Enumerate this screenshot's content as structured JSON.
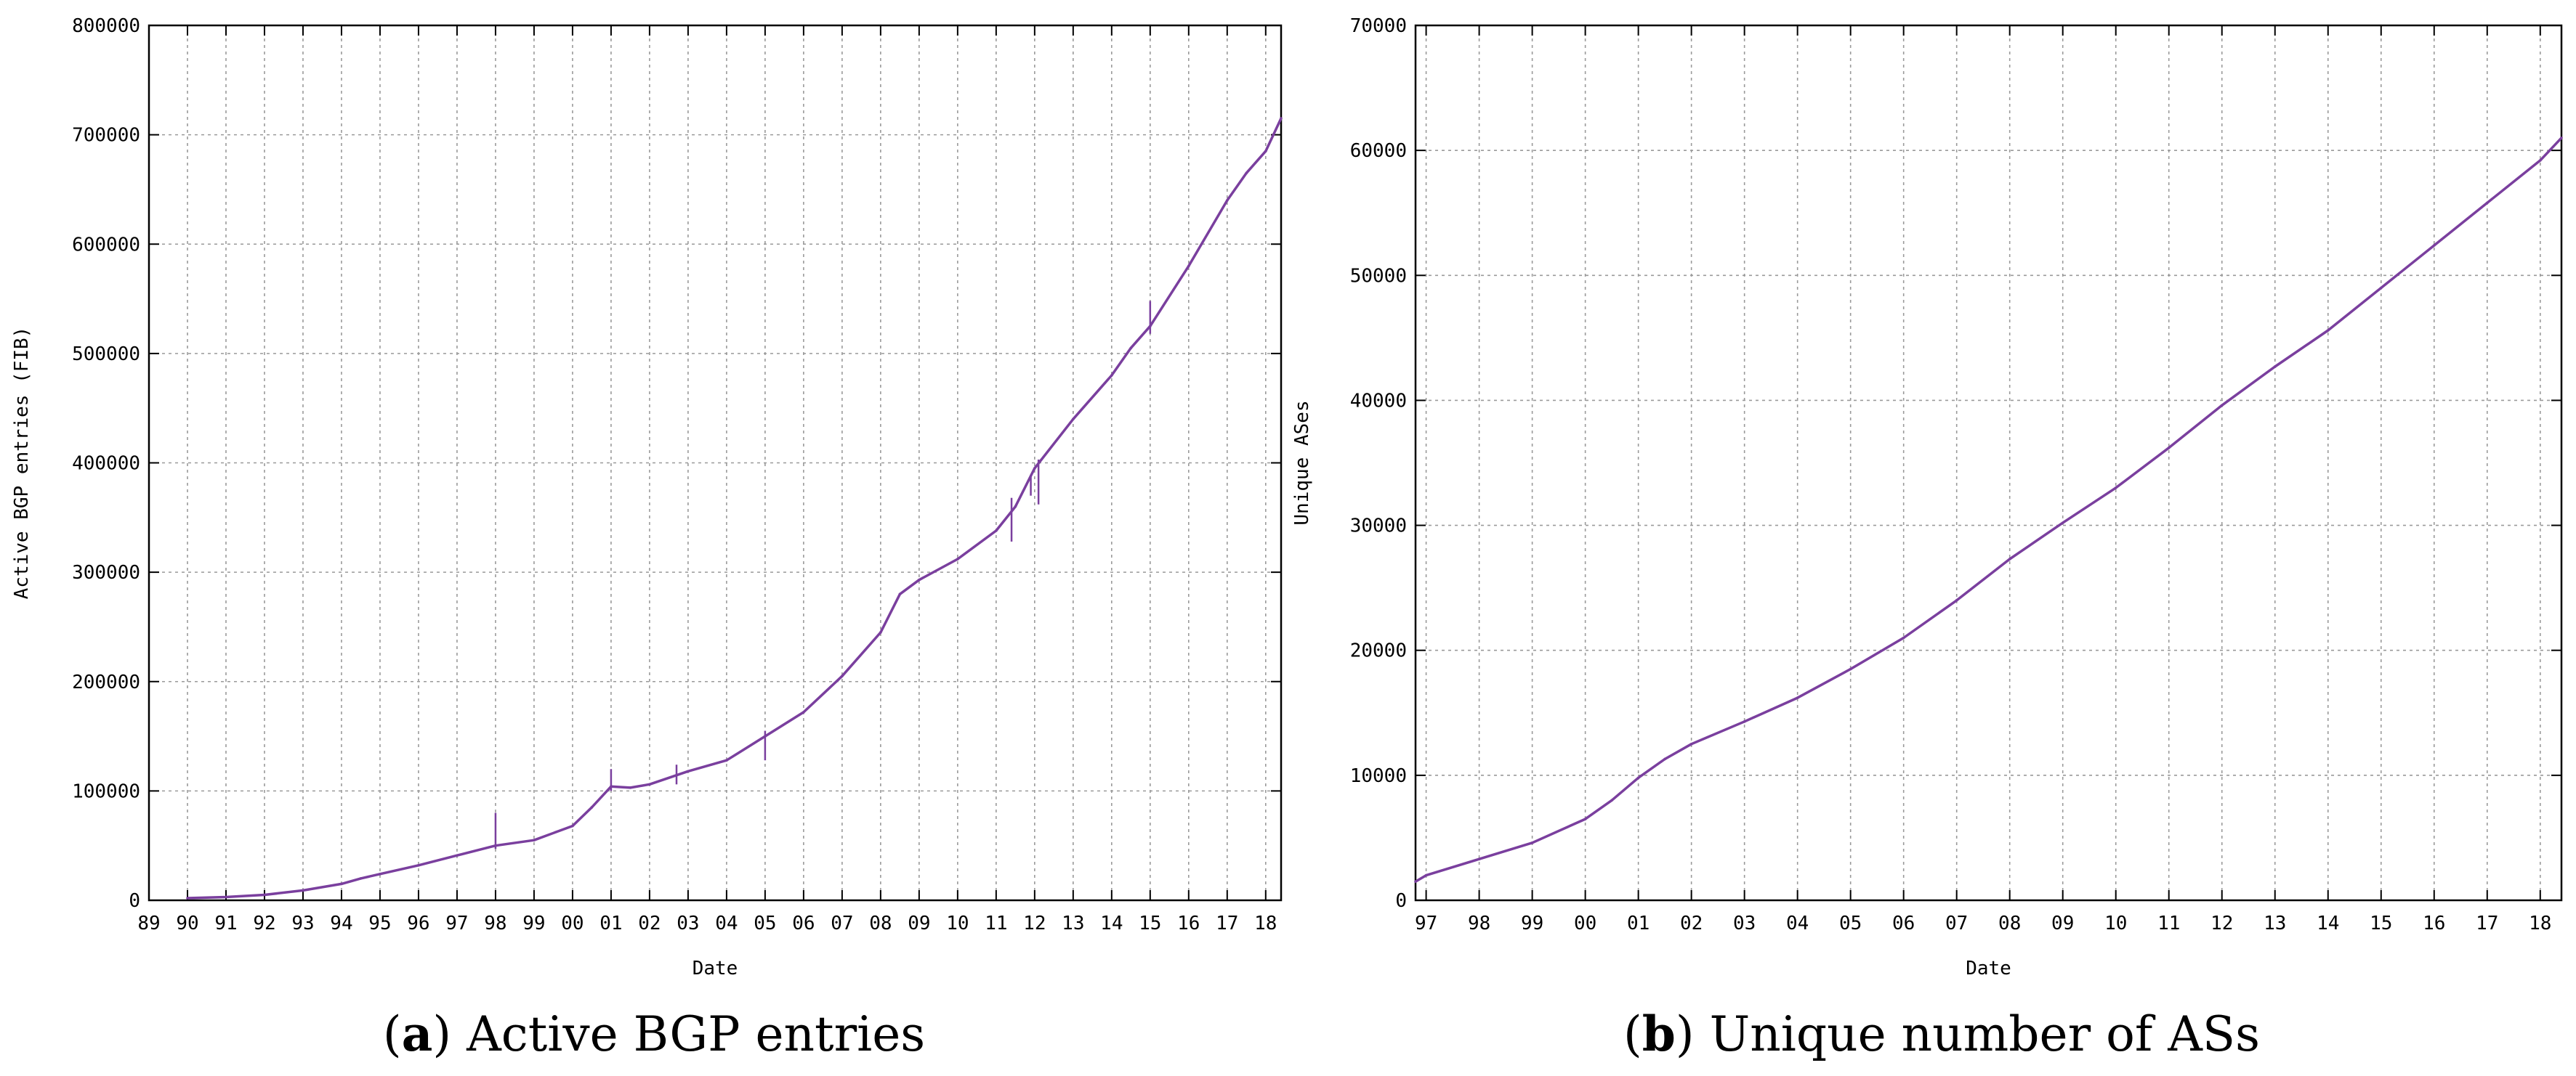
{
  "captions": [
    {
      "letter": "a",
      "text": "Active BGP entries"
    },
    {
      "letter": "b",
      "text": "Unique number of ASs"
    }
  ],
  "chart_data": [
    {
      "type": "line",
      "title": "",
      "xlabel": "Date",
      "ylabel": "Active BGP entries (FIB)",
      "x_tick_labels": [
        "89",
        "90",
        "91",
        "92",
        "93",
        "94",
        "95",
        "96",
        "97",
        "98",
        "99",
        "00",
        "01",
        "02",
        "03",
        "04",
        "05",
        "06",
        "07",
        "08",
        "09",
        "10",
        "11",
        "12",
        "13",
        "14",
        "15",
        "16",
        "17",
        "18"
      ],
      "xlim": [
        1989.0,
        2018.4
      ],
      "ylim": [
        0,
        800000
      ],
      "y_ticks": [
        0,
        100000,
        200000,
        300000,
        400000,
        500000,
        600000,
        700000,
        800000
      ],
      "grid": true,
      "line_color": "#7a3f9e",
      "series": [
        {
          "x": [
            1990.0,
            1991.0,
            1992.0,
            1993.0,
            1994.0,
            1994.5,
            1995.0,
            1996.0,
            1997.0,
            1998.0,
            1999.0,
            2000.0,
            2000.5,
            2001.0,
            2001.5,
            2002.0,
            2003.0,
            2004.0,
            2005.0,
            2006.0,
            2007.0,
            2008.0,
            2008.5,
            2009.0,
            2010.0,
            2011.0,
            2011.5,
            2012.0,
            2013.0,
            2014.0,
            2014.5,
            2015.0,
            2016.0,
            2017.0,
            2017.5,
            2018.0,
            2018.4
          ],
          "y": [
            2000,
            3000,
            5000,
            9000,
            15000,
            20000,
            24000,
            32000,
            41000,
            50000,
            55000,
            68000,
            85000,
            104000,
            103000,
            106000,
            118000,
            128000,
            150000,
            172000,
            205000,
            245000,
            280000,
            293000,
            312000,
            338000,
            360000,
            395000,
            440000,
            480000,
            505000,
            525000,
            580000,
            640000,
            665000,
            685000,
            715000
          ]
        }
      ],
      "spikes": [
        {
          "x": 1998.0,
          "y1": 47000,
          "y2": 80000
        },
        {
          "x": 2001.0,
          "y1": 100000,
          "y2": 120000
        },
        {
          "x": 2002.7,
          "y1": 106000,
          "y2": 124000
        },
        {
          "x": 2005.0,
          "y1": 128000,
          "y2": 155000
        },
        {
          "x": 2011.4,
          "y1": 328000,
          "y2": 368000
        },
        {
          "x": 2011.9,
          "y1": 370000,
          "y2": 388000
        },
        {
          "x": 2012.1,
          "y1": 362000,
          "y2": 403000
        },
        {
          "x": 2015.0,
          "y1": 518000,
          "y2": 548000
        }
      ]
    },
    {
      "type": "line",
      "title": "",
      "xlabel": "Date",
      "ylabel": "Unique ASes",
      "x_tick_labels": [
        "97",
        "98",
        "99",
        "00",
        "01",
        "02",
        "03",
        "04",
        "05",
        "06",
        "07",
        "08",
        "09",
        "10",
        "11",
        "12",
        "13",
        "14",
        "15",
        "16",
        "17",
        "18"
      ],
      "xlim": [
        1996.8,
        2018.4
      ],
      "ylim": [
        0,
        70000
      ],
      "y_ticks": [
        0,
        10000,
        20000,
        30000,
        40000,
        50000,
        60000,
        70000
      ],
      "grid": true,
      "line_color": "#7a3f9e",
      "series": [
        {
          "x": [
            1996.8,
            1997.0,
            1998.0,
            1999.0,
            2000.0,
            2000.5,
            2001.0,
            2001.5,
            2002.0,
            2003.0,
            2004.0,
            2005.0,
            2006.0,
            2007.0,
            2008.0,
            2009.0,
            2010.0,
            2011.0,
            2012.0,
            2013.0,
            2014.0,
            2015.0,
            2016.0,
            2017.0,
            2018.0,
            2018.4
          ],
          "y": [
            1500,
            2000,
            3300,
            4600,
            6500,
            8000,
            9800,
            11300,
            12500,
            14300,
            16200,
            18500,
            21000,
            24000,
            27300,
            30200,
            33000,
            36200,
            39600,
            42700,
            45600,
            49000,
            52400,
            55800,
            59200,
            61000
          ]
        }
      ],
      "spikes": []
    }
  ]
}
